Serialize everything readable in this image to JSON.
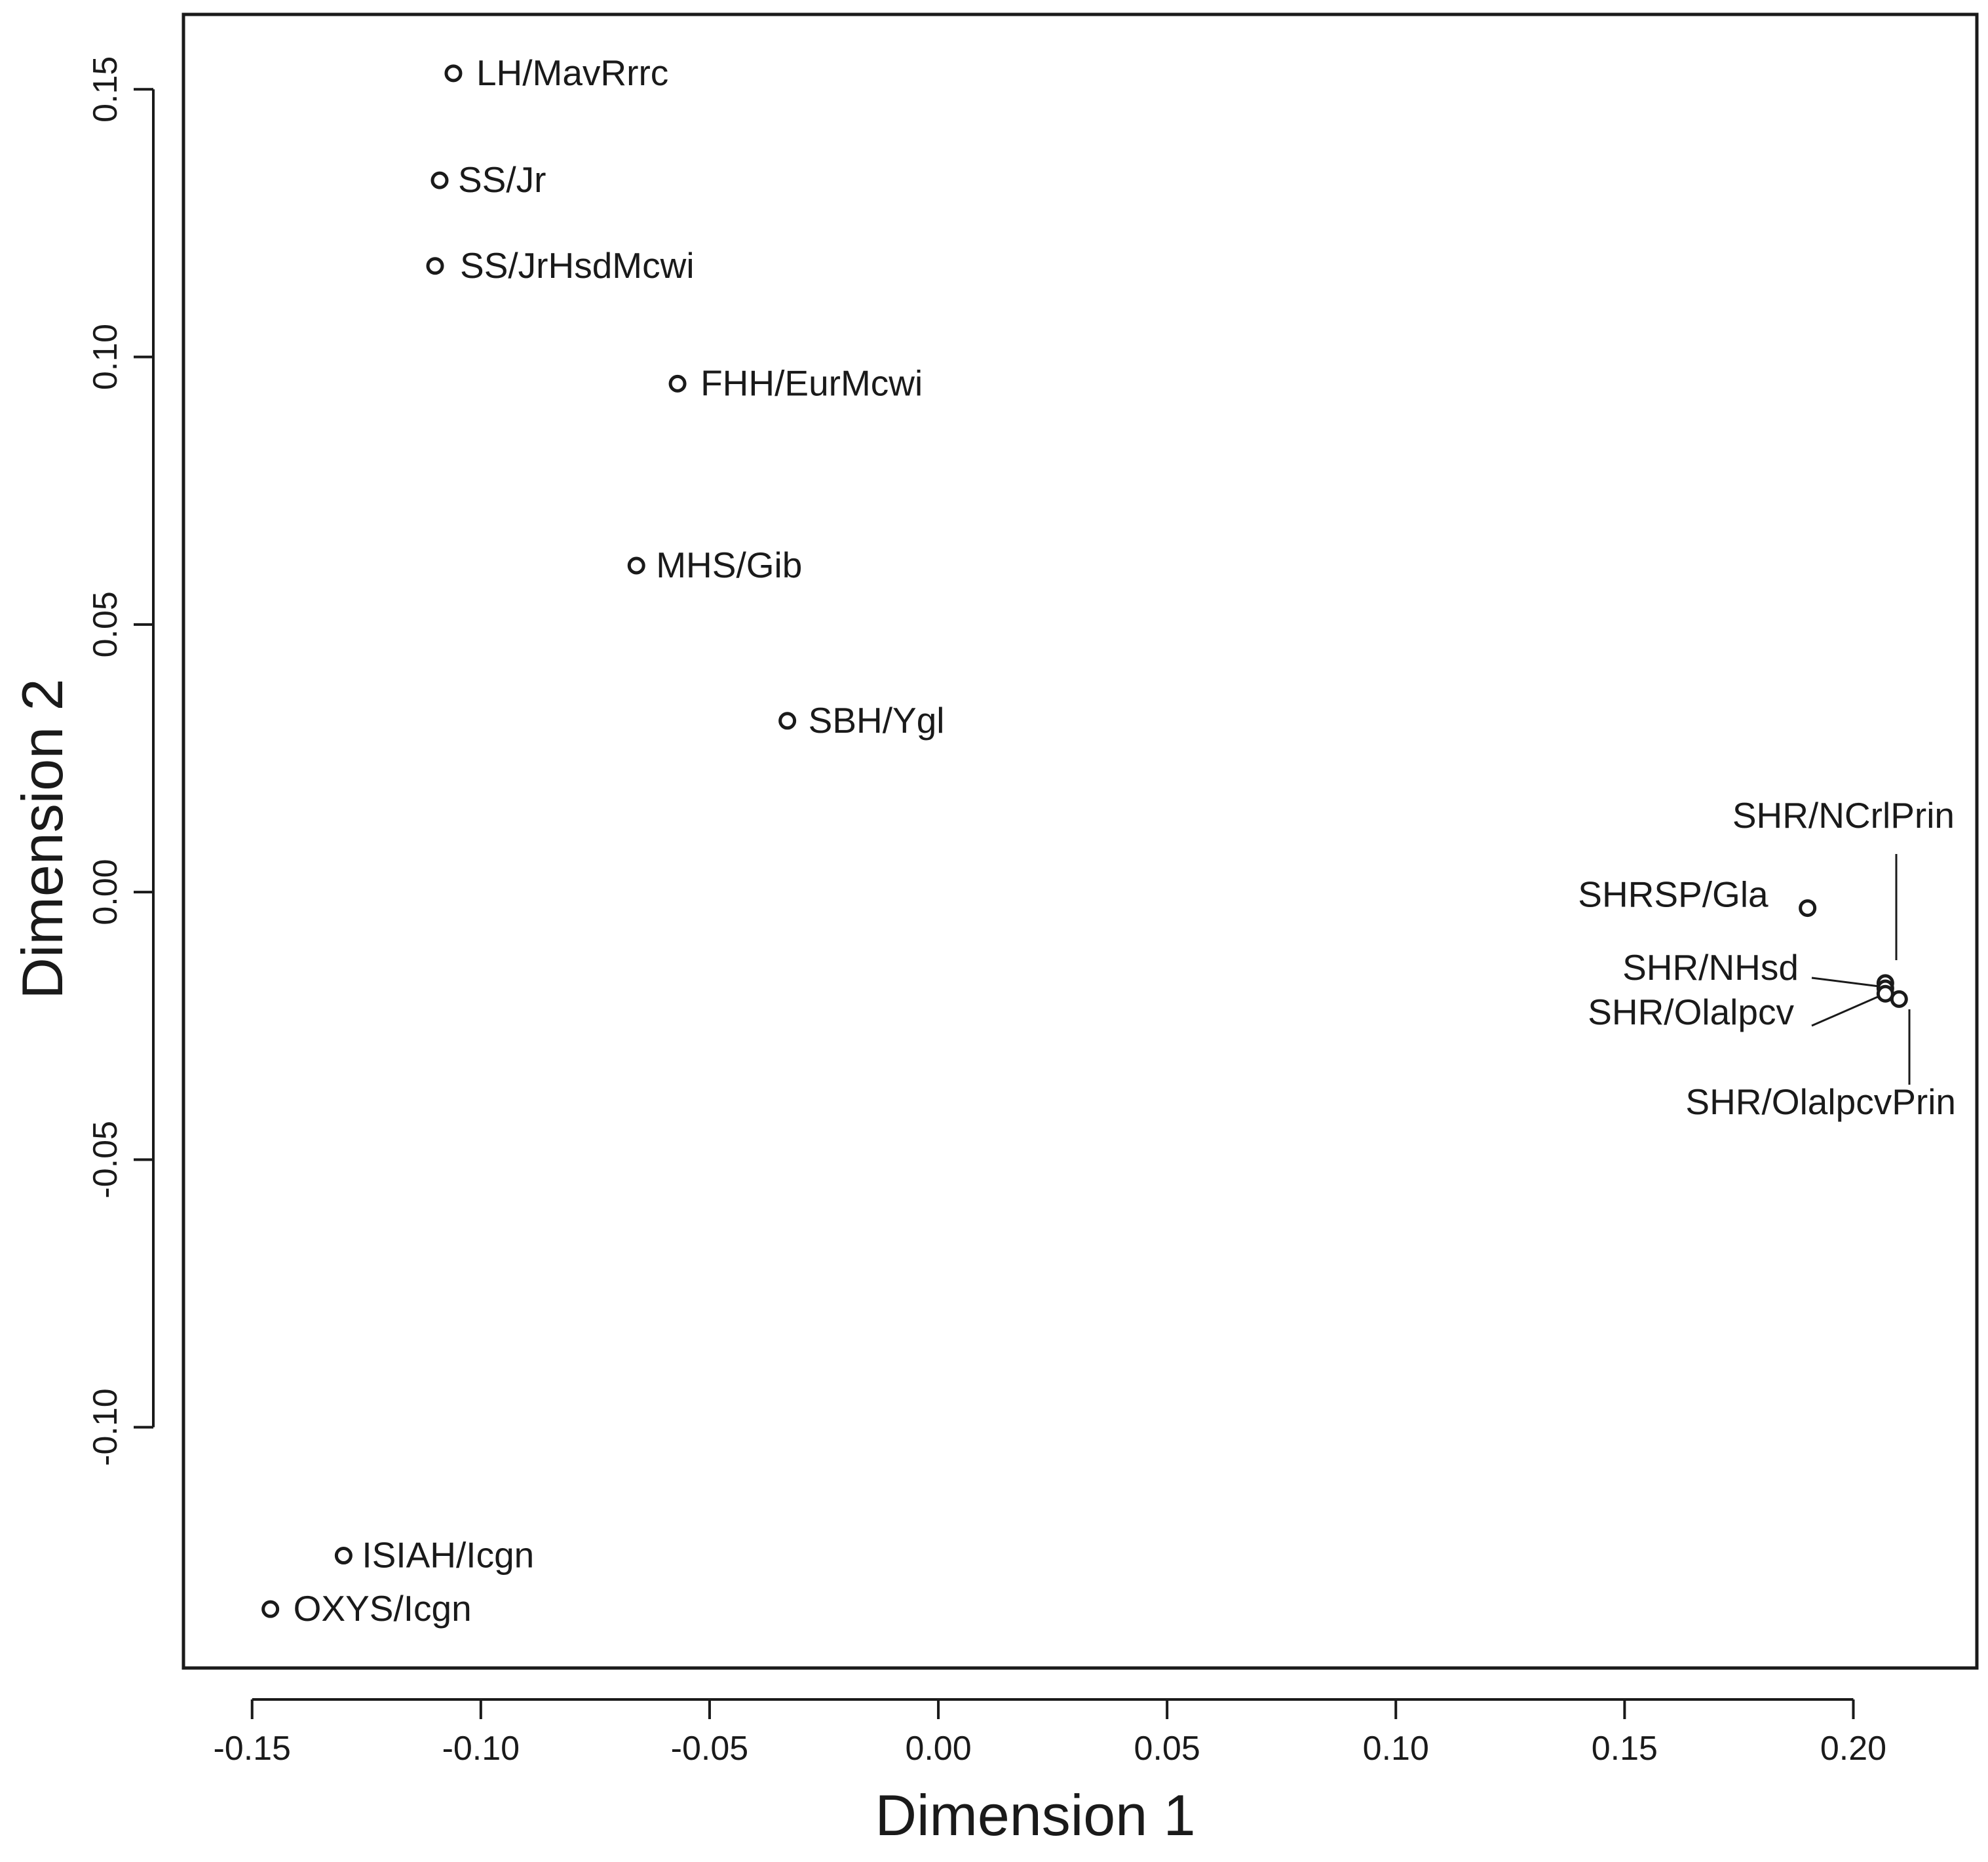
{
  "chart_data": {
    "type": "scatter",
    "title": "",
    "xlabel": "Dimension 1",
    "ylabel": "Dimension 2",
    "xlim": [
      -0.165,
      0.227
    ],
    "ylim": [
      -0.145,
      0.164
    ],
    "grid": false,
    "x_ticks": [
      -0.15,
      -0.1,
      -0.05,
      0.0,
      0.05,
      0.1,
      0.15,
      0.2
    ],
    "x_tick_labels": [
      "-0.15",
      "-0.10",
      "-0.05",
      "0.00",
      "0.05",
      "0.10",
      "0.15",
      "0.20"
    ],
    "y_ticks": [
      -0.1,
      -0.05,
      0.0,
      0.05,
      0.1,
      0.15
    ],
    "y_tick_labels": [
      "-0.10",
      "-0.05",
      "0.00",
      "0.05",
      "0.10",
      "0.15"
    ],
    "points": [
      {
        "label": "LH/MavRrrc",
        "x": -0.106,
        "y": 0.153
      },
      {
        "label": "SS/Jr",
        "x": -0.109,
        "y": 0.133
      },
      {
        "label": "SS/JrHsdMcwi",
        "x": -0.11,
        "y": 0.117
      },
      {
        "label": "FHH/EurMcwi",
        "x": -0.057,
        "y": 0.095
      },
      {
        "label": "MHS/Gib",
        "x": -0.066,
        "y": 0.061
      },
      {
        "label": "SBH/Ygl",
        "x": -0.033,
        "y": 0.032
      },
      {
        "label": "SHRSP/Gla",
        "x": 0.19,
        "y": -0.003
      },
      {
        "label": "SHR/NCrlPrin",
        "x": 0.207,
        "y": -0.017
      },
      {
        "label": "SHR/NHsd",
        "x": 0.207,
        "y": -0.018
      },
      {
        "label": "SHR/Olalpcv",
        "x": 0.207,
        "y": -0.019
      },
      {
        "label": "SHR/OlalpcvPrin",
        "x": 0.21,
        "y": -0.02
      },
      {
        "label": "ISIAH/Icgn",
        "x": -0.13,
        "y": -0.124
      },
      {
        "label": "OXYS/Icgn",
        "x": -0.146,
        "y": -0.134
      }
    ]
  }
}
